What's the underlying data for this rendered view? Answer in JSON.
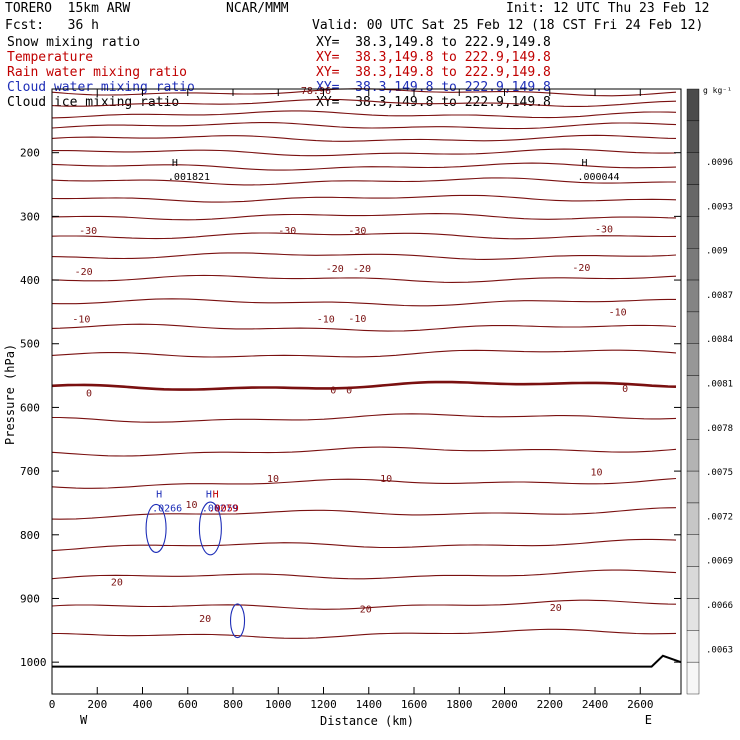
{
  "header": {
    "model": "TORERO  15km ARW",
    "forecast": "Fcst:   36 h",
    "center": "NCAR/MMM",
    "init": "Init: 12 UTC Thu 23 Feb 12",
    "valid": "Valid: 00 UTC Sat 25 Feb 12 (18 CST Fri 24 Feb 12)"
  },
  "fields": [
    {
      "name": "Snow mixing ratio",
      "xy": "XY=  38.3,149.8 to 222.9,149.8",
      "color": "#000000"
    },
    {
      "name": "Temperature",
      "xy": "XY=  38.3,149.8 to 222.9,149.8",
      "color": "#c00000"
    },
    {
      "name": "Rain water mixing ratio",
      "xy": "XY=  38.3,149.8 to 222.9,149.8",
      "color": "#c00000"
    },
    {
      "name": "Cloud water mixing ratio",
      "xy": "XY=  38.3,149.8 to 222.9,149.8",
      "color": "#1f2fb8"
    },
    {
      "name": "Cloud ice mixing ratio",
      "xy": "XY=  38.3,149.8 to 222.9,149.8",
      "color": "#000000"
    }
  ],
  "chart_data": {
    "type": "contour-cross-section",
    "xlabel": "Distance (km)",
    "ylabel": "Pressure (hPa)",
    "xlim": [
      0,
      2780
    ],
    "ylim": [
      1050,
      100
    ],
    "x_ticks": [
      0,
      200,
      400,
      600,
      800,
      1000,
      1200,
      1400,
      1600,
      1800,
      2000,
      2200,
      2400,
      2600
    ],
    "y_ticks": [
      200,
      300,
      400,
      500,
      600,
      700,
      800,
      900,
      1000
    ],
    "x_end_labels": {
      "left": "W",
      "right": "E"
    },
    "temperature_contours": [
      {
        "p": 105
      },
      {
        "p": 122
      },
      {
        "p": 140
      },
      {
        "p": 158
      },
      {
        "p": 178
      },
      {
        "p": 200
      },
      {
        "p": 222
      },
      {
        "p": 245
      },
      {
        "p": 272
      },
      {
        "p": 300,
        "label": "-30"
      },
      {
        "p": 330
      },
      {
        "p": 362,
        "label": "-20"
      },
      {
        "p": 398
      },
      {
        "p": 435,
        "label": "-10"
      },
      {
        "p": 475
      },
      {
        "p": 520
      },
      {
        "p": 570,
        "label": "0",
        "bold": true
      },
      {
        "p": 620
      },
      {
        "p": 672
      },
      {
        "p": 722,
        "label": "10"
      },
      {
        "p": 770
      },
      {
        "p": 820
      },
      {
        "p": 868
      },
      {
        "p": 915,
        "label": "20"
      },
      {
        "p": 960
      }
    ],
    "contour_labels": [
      {
        "x": 120,
        "p": 328,
        "t": "-30"
      },
      {
        "x": 1000,
        "p": 328,
        "t": "-30"
      },
      {
        "x": 1310,
        "p": 328,
        "t": "-30"
      },
      {
        "x": 2400,
        "p": 325,
        "t": "-30"
      },
      {
        "x": 100,
        "p": 392,
        "t": "-20"
      },
      {
        "x": 1210,
        "p": 387,
        "t": "-20"
      },
      {
        "x": 1330,
        "p": 387,
        "t": "-20"
      },
      {
        "x": 2300,
        "p": 386,
        "t": "-20"
      },
      {
        "x": 90,
        "p": 467,
        "t": "-10"
      },
      {
        "x": 1170,
        "p": 467,
        "t": "-10"
      },
      {
        "x": 1310,
        "p": 466,
        "t": "-10"
      },
      {
        "x": 2460,
        "p": 456,
        "t": "-10"
      },
      {
        "x": 150,
        "p": 583,
        "t": "0"
      },
      {
        "x": 1230,
        "p": 578,
        "t": "0"
      },
      {
        "x": 1300,
        "p": 578,
        "t": "0"
      },
      {
        "x": 2520,
        "p": 576,
        "t": "0"
      },
      {
        "x": 950,
        "p": 717,
        "t": "10"
      },
      {
        "x": 1450,
        "p": 717,
        "t": "10"
      },
      {
        "x": 2380,
        "p": 707,
        "t": "10"
      },
      {
        "x": 590,
        "p": 758,
        "t": "10"
      },
      {
        "x": 260,
        "p": 880,
        "t": "20"
      },
      {
        "x": 650,
        "p": 937,
        "t": "20"
      },
      {
        "x": 1360,
        "p": 922,
        "t": "20"
      },
      {
        "x": 2200,
        "p": 920,
        "t": "20"
      }
    ],
    "extrema": [
      {
        "label": "H",
        "value": ".001821",
        "x": 530,
        "p": 240,
        "color": "#000000"
      },
      {
        "label": "H",
        "value": ".000044",
        "x": 2340,
        "p": 240,
        "color": "#000000"
      },
      {
        "label": "H",
        "value": ".0266",
        "x": 460,
        "p": 760,
        "color": "#1f2fb8"
      },
      {
        "label": "H",
        "value": ".00279",
        "x": 680,
        "p": 760,
        "color": "#1f2fb8"
      },
      {
        "label": "H",
        "value": ".0059",
        "x": 710,
        "p": 760,
        "color": "#c00000"
      }
    ],
    "max_label": {
      "text": "78.96",
      "x": 1100,
      "p": 108
    },
    "colorbar": {
      "unit": "g kg⁻¹",
      "labels": [
        ".0096",
        ".0093",
        ".009",
        ".0087",
        ".0084",
        ".0081",
        ".0078",
        ".0075",
        ".0072",
        ".0069",
        ".0066",
        ".0063"
      ]
    }
  }
}
